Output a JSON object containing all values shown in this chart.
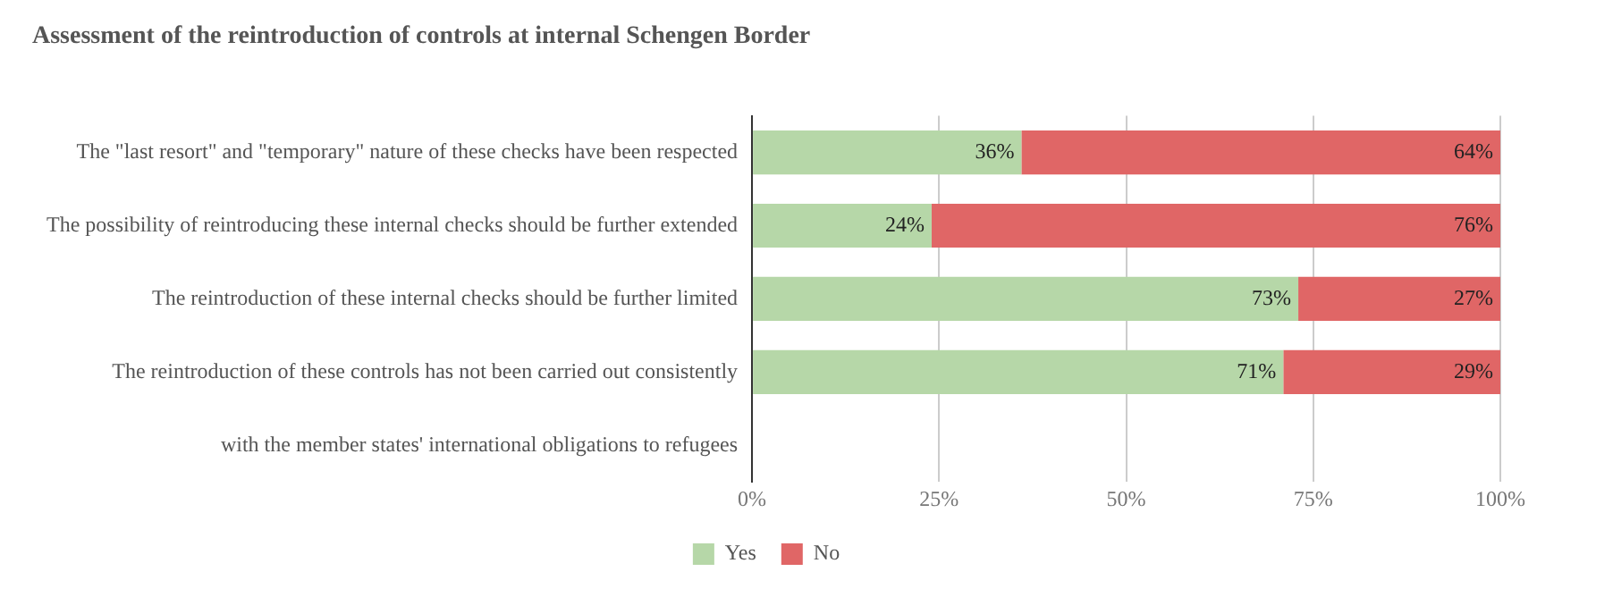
{
  "chart_data": {
    "type": "bar",
    "orientation": "horizontal",
    "stacked": true,
    "title": "Assessment of the reintroduction of controls at internal Schengen Border",
    "categories": [
      "The \"last resort\" and \"temporary\" nature of these checks have been respected",
      "The possibility of reintroducing these internal checks should be further extended",
      "The reintroduction of these internal checks should be further limited",
      "The reintroduction of these controls has not been carried out consistently",
      "with the member states' international obligations to refugees"
    ],
    "series": [
      {
        "name": "Yes",
        "color": "#b6d7a8",
        "values": [
          36,
          24,
          73,
          71,
          null
        ],
        "value_labels": [
          "36%",
          "24%",
          "73%",
          "71%",
          null
        ]
      },
      {
        "name": "No",
        "color": "#e06666",
        "values": [
          64,
          76,
          27,
          29,
          null
        ],
        "value_labels": [
          "64%",
          "76%",
          "27%",
          "29%",
          null
        ]
      }
    ],
    "xlim": [
      0,
      100
    ],
    "xticks": [
      {
        "value": 0,
        "label": "0%"
      },
      {
        "value": 25,
        "label": "25%"
      },
      {
        "value": 50,
        "label": "50%"
      },
      {
        "value": 75,
        "label": "75%"
      },
      {
        "value": 100,
        "label": "100%"
      }
    ],
    "grid": "x",
    "legend": "bottom"
  }
}
